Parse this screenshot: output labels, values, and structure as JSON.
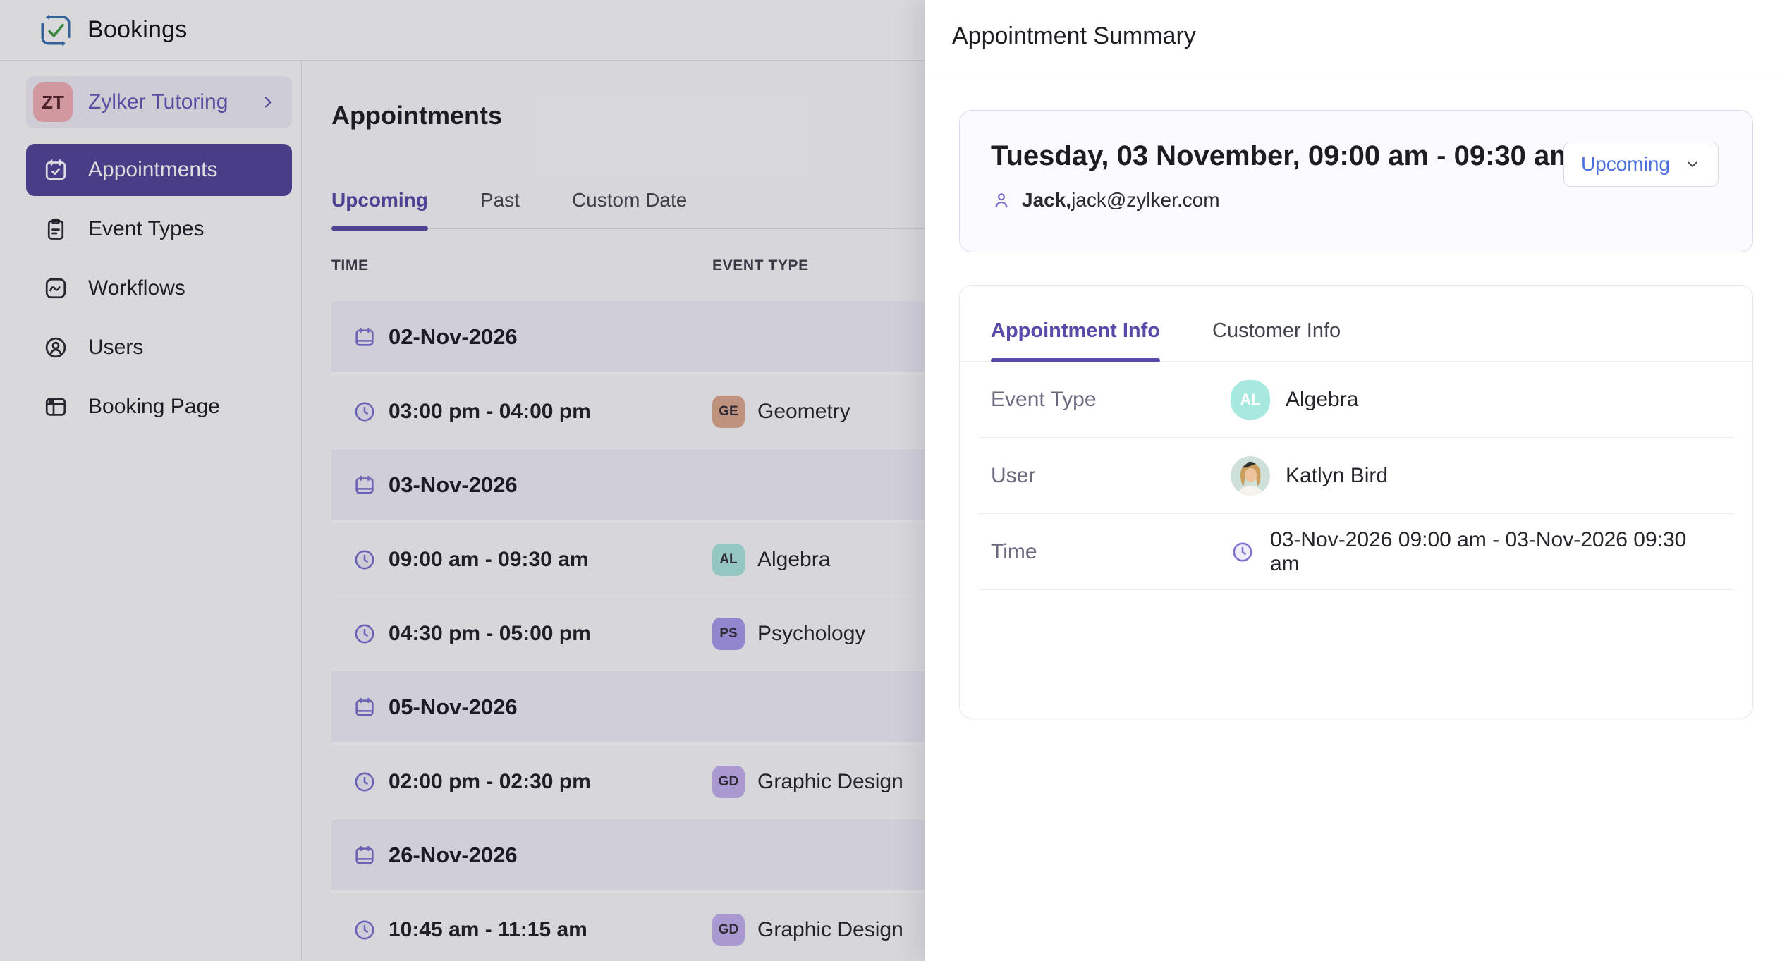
{
  "app": {
    "title": "Bookings"
  },
  "workspace": {
    "initials": "ZT",
    "name": "Zylker Tutoring"
  },
  "sidebar": {
    "items": [
      {
        "label": "Appointments",
        "icon": "calendar-check-icon",
        "active": true
      },
      {
        "label": "Event Types",
        "icon": "clipboard-icon",
        "active": false
      },
      {
        "label": "Workflows",
        "icon": "workflow-icon",
        "active": false
      },
      {
        "label": "Users",
        "icon": "users-icon",
        "active": false
      },
      {
        "label": "Booking Page",
        "icon": "booking-page-icon",
        "active": false
      }
    ]
  },
  "main": {
    "title": "Appointments",
    "tabs": [
      {
        "label": "Upcoming",
        "active": true
      },
      {
        "label": "Past",
        "active": false
      },
      {
        "label": "Custom Date",
        "active": false
      }
    ],
    "table": {
      "headers": [
        "TIME",
        "EVENT TYPE"
      ],
      "rows": [
        {
          "type": "date",
          "label": "02-Nov-2026"
        },
        {
          "type": "appt",
          "time": "03:00 pm - 04:00 pm",
          "badge": "GE",
          "badge_color": "#dca88e",
          "event": "Geometry"
        },
        {
          "type": "date",
          "label": "03-Nov-2026"
        },
        {
          "type": "appt",
          "time": "09:00 am - 09:30 am",
          "badge": "AL",
          "badge_color": "#abe7dd",
          "event": "Algebra"
        },
        {
          "type": "appt",
          "time": "04:30 pm - 05:00 pm",
          "badge": "PS",
          "badge_color": "#a89ced",
          "event": "Psychology"
        },
        {
          "type": "date",
          "label": "05-Nov-2026"
        },
        {
          "type": "appt",
          "time": "02:00 pm - 02:30 pm",
          "badge": "GD",
          "badge_color": "#c3b1ef",
          "event": "Graphic Design"
        },
        {
          "type": "date",
          "label": "26-Nov-2026"
        },
        {
          "type": "appt",
          "time": "10:45 am - 11:15 am",
          "badge": "GD",
          "badge_color": "#c3b1ef",
          "event": "Graphic Design"
        }
      ]
    }
  },
  "drawer": {
    "title": "Appointment Summary",
    "summary": {
      "datetime": "Tuesday, 03 November, 09:00 am - 09:30 am",
      "status": "Upcoming",
      "customer_name": "Jack,",
      "customer_email": "jack@zylker.com"
    },
    "tabs": [
      {
        "label": "Appointment Info",
        "active": true
      },
      {
        "label": "Customer Info",
        "active": false
      }
    ],
    "details": {
      "rows": [
        {
          "label": "Event Type",
          "kind": "badge",
          "badge": "AL",
          "value": "Algebra"
        },
        {
          "label": "User",
          "kind": "avatar",
          "value": "Katlyn Bird"
        },
        {
          "label": "Time",
          "kind": "clock",
          "value": "03-Nov-2026 09:00 am - 03-Nov-2026 09:30 am"
        }
      ]
    }
  },
  "colors": {
    "sidebar_active": "#54459b",
    "workspace_badge": "#f3b0b7",
    "workspace_text": "#6557b8",
    "active_tab": "#584aa8",
    "status_link": "#4a6fdb",
    "icon_purple": "#7c70cf",
    "event_badge_teal": "#a7e8df",
    "brand_blue": "#3b6fae",
    "brand_green": "#43a047"
  }
}
